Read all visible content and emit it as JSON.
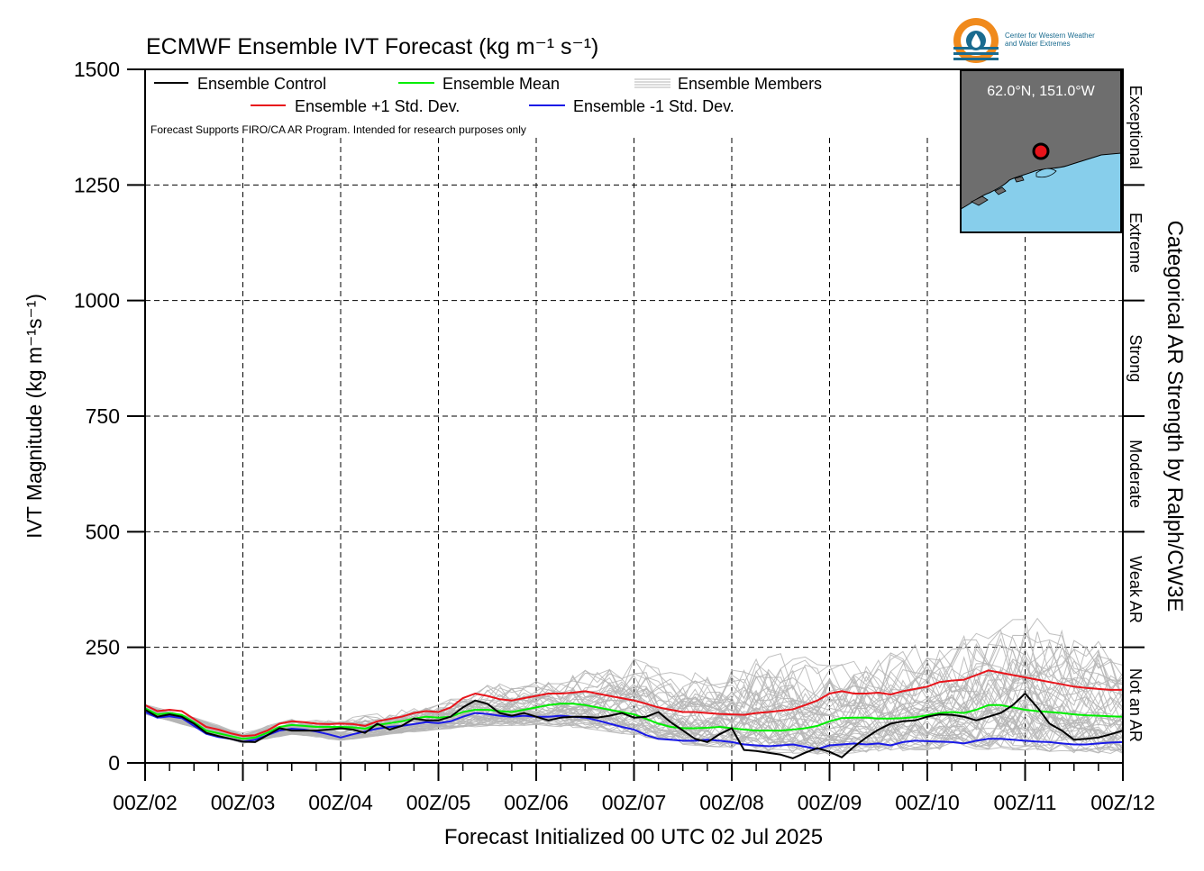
{
  "chart_data": {
    "type": "line",
    "title": "ECMWF Ensemble IVT Forecast (kg m⁻¹ s⁻¹)",
    "xlabel": "Forecast Initialized 00 UTC 02 Jul 2025",
    "ylabel": "IVT Magnitude (kg m⁻¹s⁻¹)",
    "right_axis_label": "Categorical AR Strength by Ralph/CW3E",
    "ylim": [
      0,
      1500
    ],
    "y_ticks": [
      0,
      250,
      500,
      750,
      1000,
      1250,
      1500
    ],
    "y_tick_labels": [
      "0",
      "250",
      "500",
      "750",
      "1000",
      "1250",
      "1500"
    ],
    "xlim": [
      0,
      240
    ],
    "x_ticks": [
      0,
      24,
      48,
      72,
      96,
      120,
      144,
      168,
      192,
      216,
      240
    ],
    "x_tick_labels": [
      "00Z/02",
      "00Z/03",
      "00Z/04",
      "00Z/05",
      "00Z/06",
      "00Z/07",
      "00Z/08",
      "00Z/09",
      "00Z/10",
      "00Z/11",
      "00Z/12"
    ],
    "x_unit": "forecast hour",
    "grid": true,
    "legend_position": "top-left",
    "legend": [
      {
        "label": "Ensemble Control",
        "color": "#000000",
        "kind": "line"
      },
      {
        "label": "Ensemble Mean",
        "color": "#00ee00",
        "kind": "line"
      },
      {
        "label": "Ensemble Members",
        "color": "#b5b5b5",
        "kind": "members"
      },
      {
        "label": "Ensemble +1 Std. Dev.",
        "color": "#e8141b",
        "kind": "line"
      },
      {
        "label": "Ensemble -1 Std. Dev.",
        "color": "#1a1ae6",
        "kind": "line"
      }
    ],
    "note": "Forecast Supports FIRO/CA AR Program. Intended for research purposes only",
    "categories_right": [
      {
        "label": "Not an AR",
        "range": [
          0,
          250
        ]
      },
      {
        "label": "Weak AR",
        "range": [
          250,
          500
        ]
      },
      {
        "label": "Moderate",
        "range": [
          500,
          750
        ]
      },
      {
        "label": "Strong",
        "range": [
          750,
          1000
        ]
      },
      {
        "label": "Extreme",
        "range": [
          1000,
          1250
        ]
      },
      {
        "label": "Exceptional",
        "range": [
          1250,
          1500
        ]
      }
    ],
    "series": [
      {
        "name": "Ensemble +1 Std. Dev.",
        "color": "#e8141b",
        "x": [
          0,
          3,
          6,
          9,
          12,
          15,
          18,
          21,
          24,
          27,
          30,
          33,
          36,
          39,
          42,
          45,
          48,
          51,
          54,
          57,
          60,
          63,
          66,
          69,
          72,
          75,
          78,
          81,
          84,
          87,
          90,
          93,
          96,
          99,
          102,
          105,
          108,
          111,
          114,
          117,
          120,
          123,
          126,
          129,
          132,
          135,
          138,
          141,
          144,
          147,
          150,
          153,
          156,
          159,
          162,
          165,
          168,
          171,
          174,
          177,
          180,
          183,
          186,
          189,
          192,
          195,
          198,
          201,
          204,
          207,
          210,
          213,
          216,
          219,
          222,
          225,
          228,
          231,
          234,
          237,
          240
        ],
        "values": [
          125,
          112,
          115,
          112,
          95,
          78,
          72,
          64,
          58,
          60,
          70,
          85,
          90,
          88,
          85,
          84,
          85,
          84,
          80,
          90,
          95,
          100,
          108,
          112,
          110,
          120,
          140,
          150,
          145,
          138,
          135,
          140,
          145,
          150,
          150,
          152,
          155,
          150,
          145,
          140,
          135,
          128,
          120,
          115,
          110,
          110,
          108,
          106,
          105,
          104,
          108,
          110,
          113,
          116,
          125,
          135,
          150,
          155,
          150,
          150,
          152,
          148,
          155,
          160,
          165,
          175,
          178,
          180,
          190,
          200,
          195,
          190,
          185,
          180,
          175,
          170,
          165,
          162,
          160,
          158,
          158
        ]
      },
      {
        "name": "Ensemble Mean",
        "color": "#00ee00",
        "x": [
          0,
          3,
          6,
          9,
          12,
          15,
          18,
          21,
          24,
          27,
          30,
          33,
          36,
          39,
          42,
          45,
          48,
          51,
          54,
          57,
          60,
          63,
          66,
          69,
          72,
          75,
          78,
          81,
          84,
          87,
          90,
          93,
          96,
          99,
          102,
          105,
          108,
          111,
          114,
          117,
          120,
          123,
          126,
          129,
          132,
          135,
          138,
          141,
          144,
          147,
          150,
          153,
          156,
          159,
          162,
          165,
          168,
          171,
          174,
          177,
          180,
          183,
          186,
          189,
          192,
          195,
          198,
          201,
          204,
          207,
          210,
          213,
          216,
          219,
          222,
          225,
          228,
          231,
          234,
          237,
          240
        ],
        "values": [
          118,
          105,
          108,
          104,
          88,
          70,
          64,
          58,
          52,
          55,
          65,
          78,
          82,
          80,
          78,
          78,
          78,
          77,
          74,
          82,
          86,
          90,
          96,
          100,
          98,
          100,
          110,
          115,
          115,
          112,
          110,
          115,
          120,
          125,
          128,
          128,
          125,
          120,
          115,
          110,
          105,
          95,
          85,
          78,
          75,
          75,
          76,
          78,
          75,
          72,
          70,
          70,
          70,
          72,
          75,
          80,
          90,
          97,
          98,
          98,
          96,
          96,
          97,
          99,
          103,
          108,
          110,
          108,
          115,
          125,
          125,
          120,
          115,
          112,
          110,
          108,
          105,
          103,
          102,
          101,
          100
        ]
      },
      {
        "name": "Ensemble -1 Std. Dev.",
        "color": "#1a1ae6",
        "x": [
          0,
          3,
          6,
          9,
          12,
          15,
          18,
          21,
          24,
          27,
          30,
          33,
          36,
          39,
          42,
          45,
          48,
          51,
          54,
          57,
          60,
          63,
          66,
          69,
          72,
          75,
          78,
          81,
          84,
          87,
          90,
          93,
          96,
          99,
          102,
          105,
          108,
          111,
          114,
          117,
          120,
          123,
          126,
          129,
          132,
          135,
          138,
          141,
          144,
          147,
          150,
          153,
          156,
          159,
          162,
          165,
          168,
          171,
          174,
          177,
          180,
          183,
          186,
          189,
          192,
          195,
          198,
          201,
          204,
          207,
          210,
          213,
          216,
          219,
          222,
          225,
          228,
          231,
          234,
          237,
          240
        ],
        "values": [
          110,
          98,
          101,
          97,
          80,
          63,
          56,
          52,
          46,
          50,
          60,
          70,
          74,
          72,
          68,
          62,
          55,
          62,
          68,
          74,
          78,
          80,
          84,
          88,
          86,
          90,
          100,
          108,
          106,
          102,
          100,
          102,
          100,
          100,
          102,
          100,
          98,
          92,
          85,
          78,
          72,
          60,
          52,
          50,
          48,
          48,
          50,
          48,
          45,
          40,
          38,
          36,
          38,
          40,
          35,
          30,
          38,
          40,
          42,
          40,
          42,
          38,
          45,
          48,
          47,
          46,
          45,
          42,
          48,
          52,
          52,
          50,
          48,
          46,
          45,
          42,
          40,
          40,
          42,
          44,
          45
        ]
      },
      {
        "name": "Ensemble Control",
        "color": "#000000",
        "x": [
          0,
          3,
          6,
          9,
          12,
          15,
          18,
          21,
          24,
          27,
          30,
          33,
          36,
          39,
          42,
          45,
          48,
          51,
          54,
          57,
          60,
          63,
          66,
          69,
          72,
          75,
          78,
          81,
          84,
          87,
          90,
          93,
          96,
          99,
          102,
          105,
          108,
          111,
          114,
          117,
          120,
          123,
          126,
          129,
          132,
          135,
          138,
          141,
          144,
          147,
          150,
          153,
          156,
          159,
          162,
          165,
          168,
          171,
          174,
          177,
          180,
          183,
          186,
          189,
          192,
          195,
          198,
          201,
          204,
          207,
          210,
          213,
          216,
          219,
          222,
          225,
          228,
          231,
          234,
          237,
          240
        ],
        "values": [
          115,
          100,
          105,
          100,
          85,
          65,
          58,
          52,
          46,
          45,
          60,
          75,
          70,
          70,
          70,
          72,
          75,
          72,
          65,
          85,
          72,
          80,
          96,
          92,
          92,
          100,
          120,
          135,
          128,
          108,
          102,
          108,
          100,
          92,
          98,
          100,
          100,
          98,
          102,
          108,
          98,
          100,
          110,
          88,
          70,
          52,
          45,
          62,
          75,
          28,
          26,
          22,
          18,
          10,
          22,
          32,
          24,
          12,
          35,
          55,
          72,
          85,
          90,
          92,
          100,
          105,
          104,
          100,
          92,
          100,
          108,
          125,
          150,
          120,
          85,
          70,
          50,
          52,
          55,
          62,
          70
        ]
      }
    ],
    "members": {
      "count": 50,
      "color": "#b5b5b5",
      "envelope_x": [
        0,
        12,
        24,
        36,
        48,
        60,
        72,
        84,
        96,
        108,
        120,
        132,
        144,
        156,
        168,
        180,
        192,
        204,
        216,
        228,
        240
      ],
      "envelope_min": [
        105,
        76,
        42,
        62,
        48,
        62,
        72,
        80,
        82,
        75,
        60,
        40,
        32,
        22,
        18,
        25,
        28,
        30,
        28,
        22,
        20
      ],
      "envelope_max": [
        130,
        102,
        66,
        98,
        95,
        110,
        130,
        168,
        180,
        200,
        228,
        190,
        210,
        238,
        220,
        240,
        260,
        280,
        320,
        290,
        235
      ]
    }
  },
  "location_label": "62.0°N, 151.0°W",
  "logo": {
    "org_line1": "Center for Western Weather",
    "org_line2": "and Water Extremes",
    "color": "#f08a1c",
    "accent": "#1a6b8f"
  },
  "map_colors": {
    "land": "#6e6e6e",
    "water": "#87ceeb",
    "marker": "#e8141b"
  }
}
